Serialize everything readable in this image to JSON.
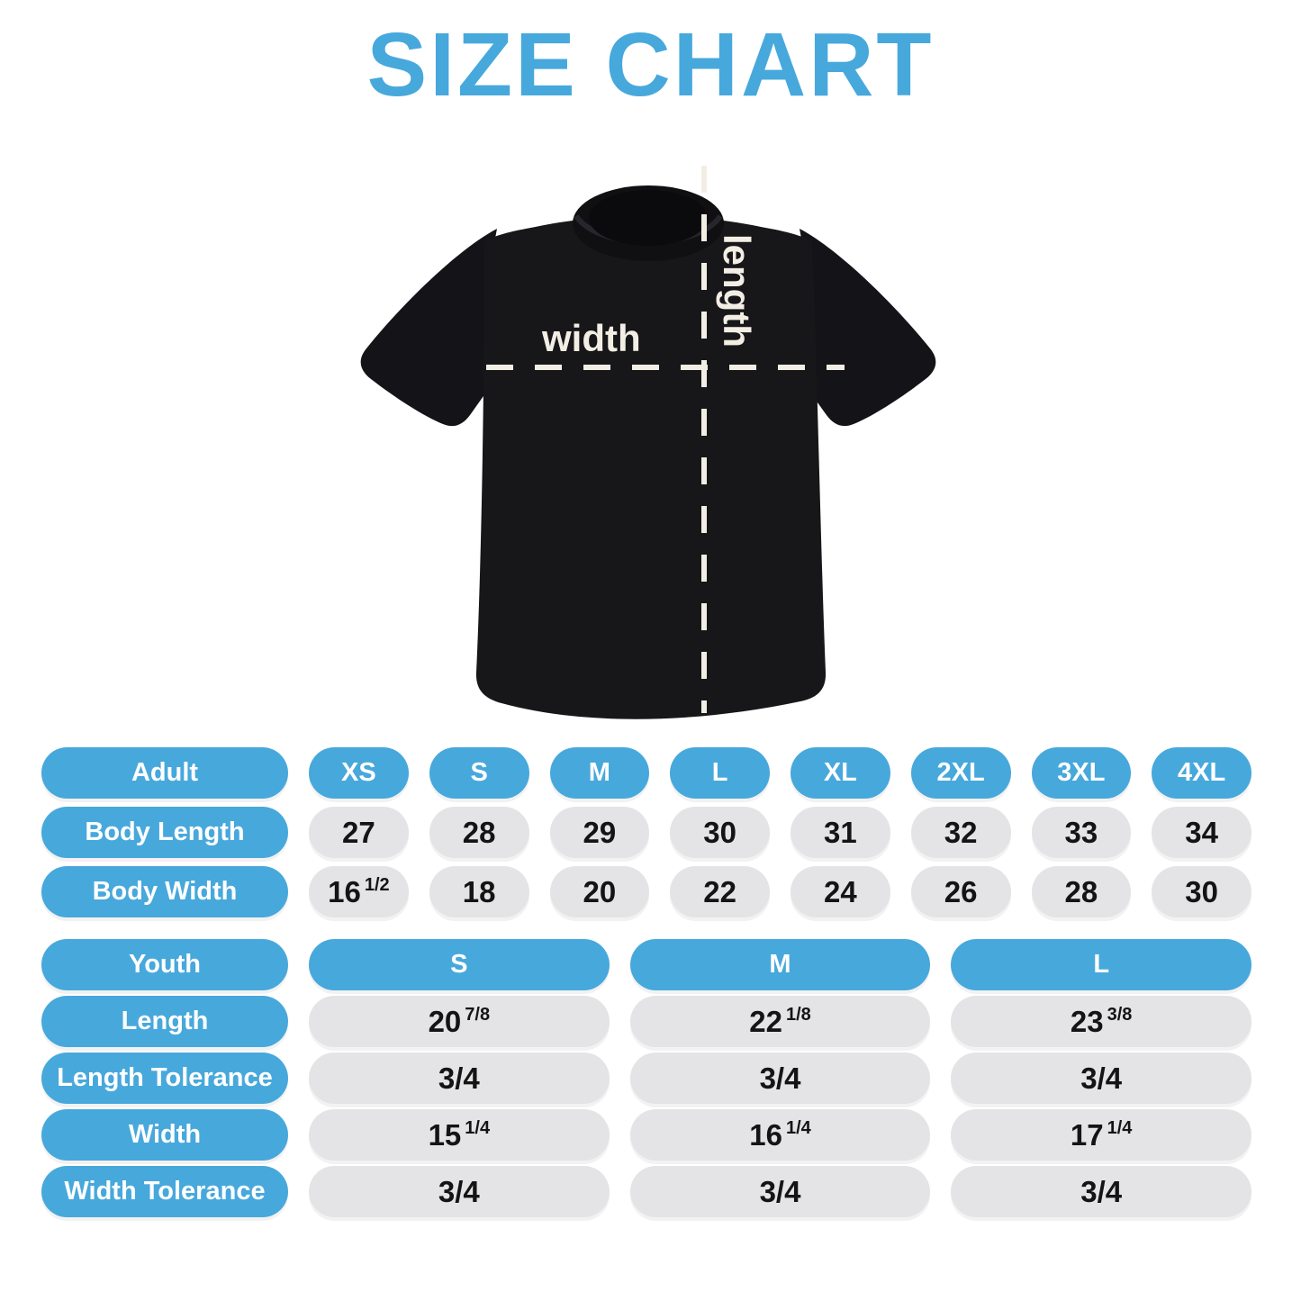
{
  "title": "SIZE CHART",
  "shirt": {
    "width_label": "width",
    "length_label": "length"
  },
  "adult_table": {
    "header": {
      "label": "Adult",
      "sizes": [
        "XS",
        "S",
        "M",
        "L",
        "XL",
        "2XL",
        "3XL",
        "4XL"
      ]
    },
    "rows": [
      {
        "label": "Body Length",
        "values": [
          {
            "main": "27"
          },
          {
            "main": "28"
          },
          {
            "main": "29"
          },
          {
            "main": "30"
          },
          {
            "main": "31"
          },
          {
            "main": "32"
          },
          {
            "main": "33"
          },
          {
            "main": "34"
          }
        ]
      },
      {
        "label": "Body Width",
        "values": [
          {
            "main": "16",
            "frac": "1/2"
          },
          {
            "main": "18"
          },
          {
            "main": "20"
          },
          {
            "main": "22"
          },
          {
            "main": "24"
          },
          {
            "main": "26"
          },
          {
            "main": "28"
          },
          {
            "main": "30"
          }
        ]
      }
    ]
  },
  "youth_table": {
    "header": {
      "label": "Youth",
      "sizes": [
        "S",
        "M",
        "L"
      ]
    },
    "rows": [
      {
        "label": "Length",
        "values": [
          {
            "main": "20",
            "frac": "7/8"
          },
          {
            "main": "22",
            "frac": "1/8"
          },
          {
            "main": "23",
            "frac": "3/8"
          }
        ]
      },
      {
        "label": "Length Tolerance",
        "values": [
          {
            "main": "3/4"
          },
          {
            "main": "3/4"
          },
          {
            "main": "3/4"
          }
        ]
      },
      {
        "label": "Width",
        "values": [
          {
            "main": "15",
            "frac": "1/4"
          },
          {
            "main": "16",
            "frac": "1/4"
          },
          {
            "main": "17",
            "frac": "1/4"
          }
        ]
      },
      {
        "label": "Width Tolerance",
        "values": [
          {
            "main": "3/4"
          },
          {
            "main": "3/4"
          },
          {
            "main": "3/4"
          }
        ]
      }
    ]
  },
  "colors": {
    "accent_blue": "#47A8DC",
    "pill_gray": "#E4E4E6",
    "value_ink": "#141414",
    "cream_dashes": "#F3EEE4",
    "shirt_black": "#17171A",
    "background": "#FFFFFF"
  }
}
